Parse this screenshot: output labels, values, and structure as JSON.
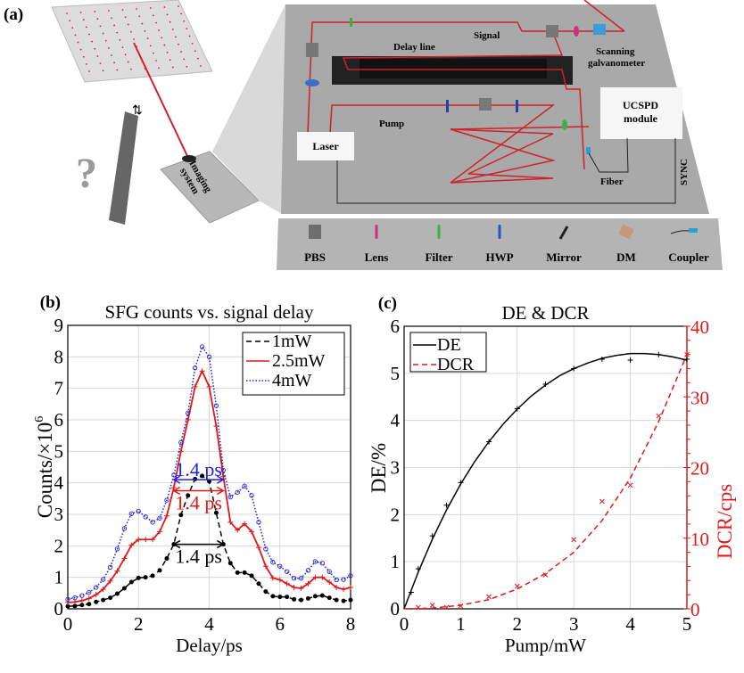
{
  "panel_a": {
    "label": "(a)",
    "board_labels": {
      "delay_line": "Delay line",
      "signal": "Signal",
      "scanning": "Scanning",
      "galvanometer": "galvanometer",
      "pump": "Pump",
      "laser": "Laser",
      "ucspd_1": "UCSPD",
      "ucspd_2": "module",
      "fiber": "Fiber",
      "sync": "SYNC",
      "imaging_1": "Imaging",
      "imaging_2": "system"
    },
    "legend": [
      {
        "label": "PBS",
        "color": "#6e6e6e"
      },
      {
        "label": "Lens",
        "color": "#d0307a"
      },
      {
        "label": "Filter",
        "color": "#3cb043"
      },
      {
        "label": "HWP",
        "color": "#3050c0"
      },
      {
        "label": "Mirror",
        "color": "#222222"
      },
      {
        "label": "DM",
        "color": "#c8977a"
      },
      {
        "label": "Coupler",
        "color": "#2a9fd6"
      }
    ],
    "colors": {
      "beam": "#d0202a",
      "board": "#a9a9a9",
      "legend_strip": "#b4b4b4"
    }
  },
  "chart_data": [
    {
      "panel_label": "(b)",
      "type": "line",
      "title": "SFG counts vs. signal delay",
      "xlabel": "Delay/ps",
      "ylabel": "Counts/×10",
      "ylabel_exp": "6",
      "xlim": [
        0,
        8
      ],
      "ylim": [
        0,
        9
      ],
      "xticks": [
        "0",
        "2",
        "4",
        "6",
        "8"
      ],
      "yticks": [
        "0",
        "1",
        "2",
        "3",
        "4",
        "5",
        "6",
        "7",
        "8",
        "9"
      ],
      "grid": true,
      "legend_position": "top-right",
      "x": [
        0,
        0.2,
        0.4,
        0.6,
        0.8,
        1.0,
        1.2,
        1.4,
        1.6,
        1.8,
        2.0,
        2.2,
        2.4,
        2.6,
        2.8,
        3.0,
        3.2,
        3.4,
        3.6,
        3.8,
        4.0,
        4.2,
        4.4,
        4.6,
        4.8,
        5.0,
        5.2,
        5.4,
        5.6,
        5.8,
        6.0,
        6.2,
        6.4,
        6.6,
        6.8,
        7.0,
        7.2,
        7.4,
        7.6,
        7.8,
        8.0
      ],
      "series": [
        {
          "name": "1mW",
          "color": "#000000",
          "style": "dashed",
          "marker": "dot",
          "values": [
            0.08,
            0.09,
            0.12,
            0.15,
            0.22,
            0.28,
            0.35,
            0.48,
            0.65,
            0.85,
            0.98,
            1.0,
            1.05,
            1.22,
            1.6,
            2.05,
            2.98,
            3.6,
            4.12,
            4.22,
            4.05,
            3.05,
            2.05,
            1.45,
            1.15,
            1.15,
            1.05,
            0.8,
            0.55,
            0.4,
            0.38,
            0.38,
            0.3,
            0.28,
            0.33,
            0.4,
            0.42,
            0.35,
            0.28,
            0.25,
            0.28
          ]
        },
        {
          "name": "2.5mW",
          "color": "#e01818",
          "style": "solid",
          "marker": "plus",
          "values": [
            0.2,
            0.22,
            0.26,
            0.33,
            0.45,
            0.62,
            0.88,
            1.2,
            1.6,
            2.02,
            2.2,
            2.2,
            2.2,
            2.45,
            2.95,
            3.85,
            5.0,
            6.0,
            7.05,
            7.55,
            7.05,
            5.8,
            4.2,
            2.75,
            2.5,
            2.7,
            2.45,
            1.95,
            1.35,
            0.98,
            0.92,
            0.8,
            0.68,
            0.65,
            0.8,
            1.0,
            1.0,
            0.85,
            0.68,
            0.62,
            0.68
          ]
        },
        {
          "name": "4mW",
          "color": "#2020e0",
          "style": "dotted",
          "marker": "circle",
          "values": [
            0.3,
            0.35,
            0.42,
            0.52,
            0.68,
            0.93,
            1.32,
            1.9,
            2.55,
            3.02,
            3.1,
            2.92,
            2.75,
            2.88,
            3.45,
            4.25,
            5.28,
            6.22,
            7.65,
            8.32,
            8.0,
            6.45,
            4.4,
            3.55,
            3.7,
            3.9,
            3.6,
            2.75,
            1.9,
            1.48,
            1.35,
            1.18,
            0.97,
            0.97,
            1.22,
            1.5,
            1.45,
            1.18,
            0.92,
            0.93,
            1.05
          ]
        }
      ],
      "annotations": [
        {
          "text": "1.4 ps",
          "color": "#2020e0",
          "x_from": 3.0,
          "x_to": 4.4,
          "y": 4.1
        },
        {
          "text": "1.4 ps",
          "color": "#e01818",
          "x_from": 3.0,
          "x_to": 4.4,
          "y": 3.75
        },
        {
          "text": "1.4 ps",
          "color": "#000000",
          "x_from": 3.0,
          "x_to": 4.4,
          "y": 2.05
        }
      ]
    },
    {
      "panel_label": "(c)",
      "type": "scatter",
      "title": "DE & DCR",
      "xlabel": "Pump/mW",
      "ylabel": "DE/%",
      "y2label": "DCR/cps",
      "xlim": [
        0,
        5
      ],
      "ylim": [
        0,
        6
      ],
      "y2lim": [
        0,
        40
      ],
      "xticks": [
        "0",
        "1",
        "2",
        "3",
        "4",
        "5"
      ],
      "yticks": [
        "0",
        "1",
        "2",
        "3",
        "4",
        "5",
        "6"
      ],
      "y2ticks": [
        "0",
        "10",
        "20",
        "30",
        "40"
      ],
      "grid": true,
      "legend_position": "top-left",
      "series": [
        {
          "name": "DE",
          "axis": "left",
          "color": "#000000",
          "style": "solid",
          "marker": "plus",
          "x": [
            0.125,
            0.25,
            0.5,
            0.75,
            1,
            1.5,
            2,
            2.5,
            3,
            3.5,
            4,
            4.5,
            5
          ],
          "values": [
            0.35,
            0.85,
            1.55,
            2.2,
            2.68,
            3.55,
            4.25,
            4.77,
            5.1,
            5.3,
            5.28,
            5.4,
            5.3
          ],
          "fit_x": [
            0,
            0.25,
            0.5,
            0.75,
            1,
            1.25,
            1.5,
            1.75,
            2,
            2.25,
            2.5,
            2.75,
            3,
            3.25,
            3.5,
            3.75,
            4,
            4.25,
            4.5,
            4.75,
            5
          ],
          "fit_y": [
            0,
            0.78,
            1.48,
            2.1,
            2.65,
            3.13,
            3.55,
            3.92,
            4.24,
            4.52,
            4.75,
            4.95,
            5.1,
            5.22,
            5.32,
            5.38,
            5.42,
            5.42,
            5.4,
            5.35,
            5.28
          ]
        },
        {
          "name": "DCR",
          "axis": "right",
          "color": "#e01818",
          "style": "dashed",
          "marker": "x",
          "x": [
            0.25,
            0.5,
            0.75,
            1,
            1.5,
            2,
            2.5,
            3,
            3.5,
            4,
            4.5,
            5
          ],
          "values": [
            0.2,
            0.5,
            0.2,
            0.4,
            1.7,
            3.2,
            4.8,
            9.8,
            15.2,
            17.5,
            27.3,
            36
          ],
          "fit_x": [
            0,
            0.5,
            1,
            1.5,
            2,
            2.5,
            3,
            3.5,
            4,
            4.5,
            5
          ],
          "fit_y": [
            0,
            0.1,
            0.5,
            1.3,
            2.8,
            5,
            8,
            12.5,
            18.5,
            26.5,
            36
          ]
        }
      ]
    }
  ]
}
